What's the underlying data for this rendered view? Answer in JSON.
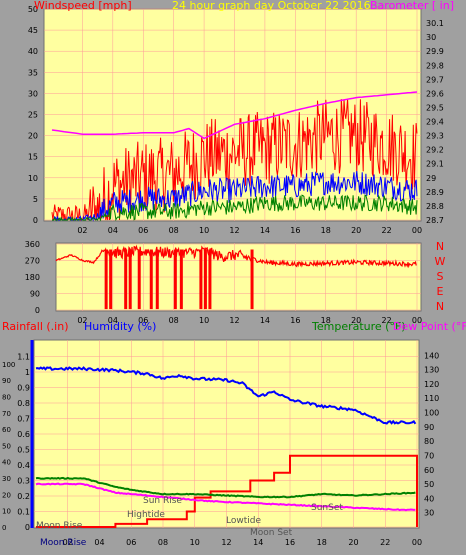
{
  "top": {
    "title_left": "Windspeed [mph]",
    "title_center": "24 hour graph day   October 22 2016",
    "title_right": "Barometer [ in]"
  },
  "mid": {
    "compass": [
      "N",
      "W",
      "S",
      "E",
      "N"
    ]
  },
  "bottom": {
    "rain_label": "Rainfall (.in)",
    "humidity_label": "Humidity (%)",
    "temp_label": "Temperature (°F)",
    "dew_label": "Dew Point (°F)",
    "annotations": [
      "Moon Rise",
      "Hightide",
      "Sun Rise",
      "Lowtide",
      "Moon Set",
      "SunSet"
    ],
    "moonrise_footer": "Moon Rise"
  },
  "colors": {
    "bg": "#a0a0a0",
    "plot_bg": "#ffffa0",
    "wind": "#ff0000",
    "gust_avg": "#0000ff",
    "wind_avg": "#008000",
    "barometer": "#ff00ff",
    "direction": "#ff0000",
    "rain": "#ff0000",
    "humidity": "#0000ff",
    "temperature": "#008000",
    "dewpoint": "#ff00ff",
    "grid": "#ff9999"
  },
  "chart_data": [
    {
      "type": "line",
      "title": "24 hour graph day   October 22 2016",
      "ylabel": "Windspeed [mph]",
      "y2label": "Barometer [ in]",
      "x_ticks": [
        "02",
        "04",
        "06",
        "08",
        "10",
        "12",
        "14",
        "16",
        "18",
        "20",
        "22",
        "00"
      ],
      "ylim": [
        0,
        50
      ],
      "y_ticks": [
        0,
        5,
        10,
        15,
        20,
        25,
        30,
        35,
        40,
        45,
        50
      ],
      "y2lim": [
        28.7,
        30.2
      ],
      "y2_ticks": [
        "28.7",
        "28.8",
        "28.9",
        "29",
        "29.1",
        "29.2",
        "29.3",
        "29.4",
        "29.5",
        "29.6",
        "29.7",
        "29.8",
        "29.9",
        "30",
        "30.1"
      ],
      "series": [
        {
          "hours": [
            0,
            2,
            3,
            4,
            6,
            8,
            10,
            12,
            14,
            16,
            18,
            20,
            22,
            24
          ],
          "values": [
            1,
            1,
            2,
            8,
            10,
            11,
            15,
            16,
            17,
            18,
            20,
            20,
            18,
            15
          ]
        },
        {
          "hours": [
            0,
            2,
            3,
            4,
            6,
            8,
            10,
            12,
            14,
            16,
            18,
            20,
            22,
            24
          ],
          "values": [
            0,
            0,
            1,
            4,
            5,
            5,
            7,
            7,
            8,
            8,
            9,
            9,
            8,
            7
          ]
        },
        {
          "hours": [
            0,
            2,
            3,
            4,
            6,
            8,
            10,
            12,
            14,
            16,
            18,
            20,
            22,
            24
          ],
          "values": [
            0,
            0,
            0,
            2,
            2,
            2,
            3,
            3,
            4,
            4,
            4,
            4,
            4,
            3
          ]
        },
        {
          "hours": [
            0,
            2,
            4,
            6,
            8,
            9,
            10,
            12,
            14,
            16,
            18,
            20,
            22,
            24
          ],
          "values": [
            29.34,
            29.31,
            29.31,
            29.32,
            29.32,
            29.35,
            29.28,
            29.38,
            29.42,
            29.48,
            29.53,
            29.57,
            29.59,
            29.61
          ]
        }
      ]
    },
    {
      "type": "scatter",
      "ylabel": "Wind direction",
      "x_ticks": [
        "02",
        "04",
        "06",
        "08",
        "10",
        "12",
        "14",
        "16",
        "18",
        "20",
        "22",
        "00"
      ],
      "ylim": [
        0,
        360
      ],
      "y_ticks": [
        0,
        90,
        180,
        270,
        360
      ],
      "series": [
        {
          "hours": [
            0,
            1,
            1.8,
            2.5,
            3.2,
            4,
            6,
            8,
            10,
            11,
            12,
            14,
            16,
            18,
            20,
            22,
            24
          ],
          "values": [
            270,
            300,
            270,
            260,
            330,
            310,
            320,
            310,
            320,
            290,
            300,
            260,
            250,
            255,
            260,
            255,
            250
          ],
          "drops_at_hours": [
            3.3,
            3.6,
            4.6,
            4.9,
            5.5,
            6.3,
            6.7,
            7.9,
            8.3,
            9.6,
            9.9,
            10.2,
            13.0
          ]
        }
      ]
    },
    {
      "type": "line",
      "x_ticks": [
        "02",
        "04",
        "06",
        "08",
        "10",
        "12",
        "14",
        "16",
        "18",
        "20",
        "22",
        "00"
      ],
      "ylim": [
        0,
        1.2
      ],
      "y_ticks_rain": [
        "0",
        "0.1",
        "0.2",
        "0.3",
        "0.4",
        "0.5",
        "0.6",
        "0.7",
        "0.8",
        "0.9",
        "1",
        "1.1"
      ],
      "y_ticks_humidity": [
        0,
        10,
        20,
        30,
        40,
        50,
        60,
        70,
        80,
        90,
        100
      ],
      "y2lim": [
        20,
        150
      ],
      "y2_ticks": [
        30,
        40,
        50,
        60,
        70,
        80,
        90,
        100,
        110,
        120,
        130,
        140
      ],
      "series": [
        {
          "hours": [
            0,
            3,
            5,
            7,
            8.5,
            9.5,
            10,
            11,
            13,
            13.5,
            15,
            16,
            24
          ],
          "values": [
            0.0,
            0.0,
            0.02,
            0.05,
            0.05,
            0.1,
            0.19,
            0.23,
            0.23,
            0.3,
            0.35,
            0.46,
            0.46
          ]
        },
        {
          "hours": [
            0,
            3,
            5,
            7,
            8,
            9,
            10,
            12,
            13,
            14,
            15,
            16,
            18,
            20,
            22,
            24
          ],
          "values": [
            97,
            97,
            96,
            94,
            91,
            93,
            91,
            90,
            88,
            80,
            83,
            78,
            74,
            72,
            64,
            64
          ]
        },
        {
          "hours": [
            0,
            3,
            4,
            5,
            6,
            8,
            10,
            12,
            14,
            16,
            18,
            20,
            22,
            24
          ],
          "values": [
            54,
            54,
            51,
            48,
            46,
            43,
            43,
            42,
            41,
            41,
            43,
            42,
            43,
            44
          ]
        },
        {
          "hours": [
            0,
            3,
            4,
            5,
            7,
            9,
            11,
            13,
            15,
            17,
            19,
            21,
            23,
            24
          ],
          "values": [
            50,
            50,
            47,
            44,
            42,
            40,
            38,
            37,
            36,
            35,
            34,
            33,
            32,
            32
          ]
        }
      ]
    }
  ]
}
